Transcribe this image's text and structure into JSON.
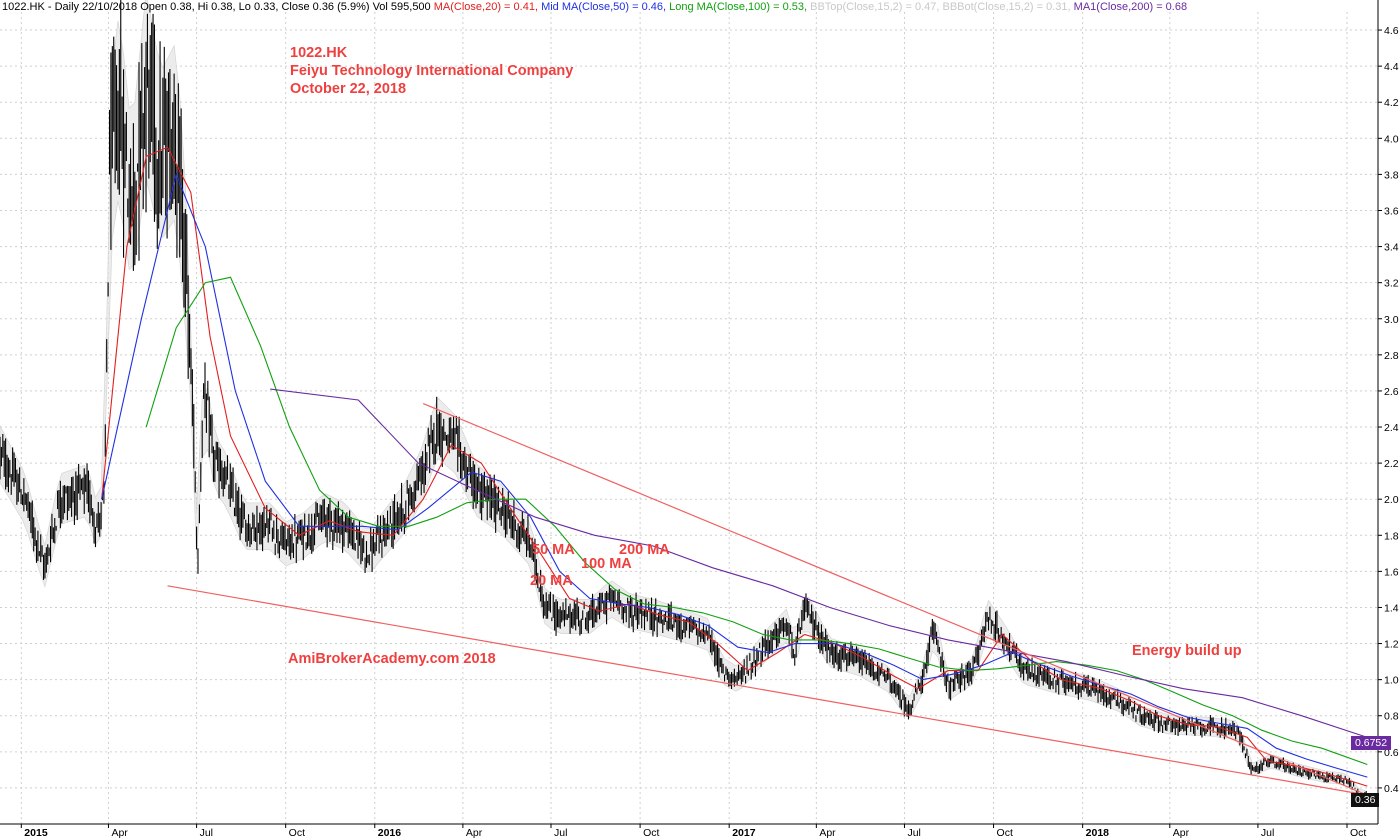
{
  "header": {
    "symbol_info": "1022.HK - Daily 22/10/2018 Open 0.38, Hi 0.38, Lo 0.33, Close 0.36 (5.9%) Vol 595,500",
    "ma20": {
      "text": "MA(Close,20) = 0.41,",
      "color": "#e02020"
    },
    "ma50": {
      "text": "Mid MA(Close,50) = 0.46,",
      "color": "#2030e0"
    },
    "ma100": {
      "text": "Long MA(Close,100) = 0.53,",
      "color": "#10a010"
    },
    "bbtop": {
      "text": "BBTop(Close,15,2) = 0.47,",
      "color": "#c8c8c8"
    },
    "bbbot": {
      "text": "BBBot(Close,15,2) = 0.31,",
      "color": "#c8c8c8"
    },
    "ma200": {
      "text": "MA1(Close,200) = 0.68",
      "color": "#6a2aa0"
    }
  },
  "annotations": {
    "title_lines": [
      "1022.HK",
      "Feiyu Technology International Company",
      "October 22, 2018"
    ],
    "watermark": "AmiBrokerAcademy.com  2018",
    "energy": "Energy build up",
    "ma50_label": "50 MA",
    "ma20_label": "20 MA",
    "ma100_label": "100 MA",
    "ma200_label": "200 MA"
  },
  "badges": {
    "ma200_value": "0.6752",
    "close_value": "0.36"
  },
  "chart_data": {
    "type": "candlestick",
    "title": "1022.HK",
    "ylim": [
      0.2,
      4.7
    ],
    "y_ticks": [
      0.4,
      0.6,
      0.8,
      1.0,
      1.2,
      1.4,
      1.6,
      1.8,
      2.0,
      2.2,
      2.4,
      2.6,
      2.8,
      3.0,
      3.2,
      3.4,
      3.6,
      3.8,
      4.0,
      4.2,
      4.4,
      4.6
    ],
    "y_tick_labels": [
      "0.4",
      "0.6",
      "0.8",
      "1.0",
      "1.2",
      "1.4",
      "1.6",
      "1.8",
      "2.0",
      "2.2",
      "2.4",
      "2.6",
      "2.8",
      "3.0",
      "3.2",
      "3.4",
      "3.6",
      "3.8",
      "4.0",
      "4.2",
      "4.4",
      "4.6"
    ],
    "x_ticks": [
      {
        "date": "2015-01-01",
        "label": "2015",
        "bold": true
      },
      {
        "date": "2015-04-01",
        "label": "Apr"
      },
      {
        "date": "2015-07-01",
        "label": "Jul"
      },
      {
        "date": "2015-10-01",
        "label": "Oct"
      },
      {
        "date": "2016-01-01",
        "label": "2016",
        "bold": true
      },
      {
        "date": "2016-04-01",
        "label": "Apr"
      },
      {
        "date": "2016-07-01",
        "label": "Jul"
      },
      {
        "date": "2016-10-01",
        "label": "Oct"
      },
      {
        "date": "2017-01-01",
        "label": "2017",
        "bold": true
      },
      {
        "date": "2017-04-01",
        "label": "Apr"
      },
      {
        "date": "2017-07-01",
        "label": "Jul"
      },
      {
        "date": "2017-10-01",
        "label": "Oct"
      },
      {
        "date": "2018-01-01",
        "label": "2018",
        "bold": true
      },
      {
        "date": "2018-04-01",
        "label": "Apr"
      },
      {
        "date": "2018-07-01",
        "label": "Jul"
      },
      {
        "date": "2018-10-01",
        "label": "Oct"
      }
    ],
    "grid": true,
    "price_path": [
      [
        "2014-12-10",
        2.25
      ],
      [
        "2015-01-05",
        2.0
      ],
      [
        "2015-01-25",
        1.62
      ],
      [
        "2015-02-10",
        2.0
      ],
      [
        "2015-03-10",
        2.05
      ],
      [
        "2015-03-20",
        1.85
      ],
      [
        "2015-03-28",
        2.0
      ],
      [
        "2015-04-02",
        3.8
      ],
      [
        "2015-04-12",
        4.2
      ],
      [
        "2015-04-25",
        3.6
      ],
      [
        "2015-05-10",
        4.3
      ],
      [
        "2015-05-25",
        3.9
      ],
      [
        "2015-06-10",
        4.05
      ],
      [
        "2015-06-20",
        3.3
      ],
      [
        "2015-06-28",
        2.4
      ],
      [
        "2015-07-02",
        1.6
      ],
      [
        "2015-07-08",
        2.6
      ],
      [
        "2015-07-20",
        2.2
      ],
      [
        "2015-08-01",
        2.1
      ],
      [
        "2015-08-20",
        1.85
      ],
      [
        "2015-09-15",
        1.85
      ],
      [
        "2015-10-01",
        1.75
      ],
      [
        "2015-10-20",
        1.8
      ],
      [
        "2015-11-10",
        1.9
      ],
      [
        "2015-12-01",
        1.85
      ],
      [
        "2015-12-25",
        1.7
      ],
      [
        "2016-02-01",
        1.95
      ],
      [
        "2016-02-20",
        2.15
      ],
      [
        "2016-03-05",
        2.4
      ],
      [
        "2016-03-25",
        2.3
      ],
      [
        "2016-04-15",
        2.05
      ],
      [
        "2016-05-10",
        1.95
      ],
      [
        "2016-06-10",
        1.75
      ],
      [
        "2016-06-25",
        1.4
      ],
      [
        "2016-07-10",
        1.35
      ],
      [
        "2016-08-10",
        1.35
      ],
      [
        "2016-09-01",
        1.45
      ],
      [
        "2016-09-20",
        1.38
      ],
      [
        "2016-10-15",
        1.35
      ],
      [
        "2016-11-15",
        1.3
      ],
      [
        "2016-12-10",
        1.25
      ],
      [
        "2016-12-25",
        1.05
      ],
      [
        "2017-01-10",
        1.0
      ],
      [
        "2017-02-10",
        1.2
      ],
      [
        "2017-03-01",
        1.3
      ],
      [
        "2017-03-10",
        1.15
      ],
      [
        "2017-03-20",
        1.4
      ],
      [
        "2017-04-15",
        1.15
      ],
      [
        "2017-05-15",
        1.1
      ],
      [
        "2017-06-15",
        1.0
      ],
      [
        "2017-07-05",
        0.83
      ],
      [
        "2017-07-20",
        1.0
      ],
      [
        "2017-08-01",
        1.3
      ],
      [
        "2017-08-15",
        0.95
      ],
      [
        "2017-09-10",
        1.05
      ],
      [
        "2017-09-25",
        1.35
      ],
      [
        "2017-10-15",
        1.2
      ],
      [
        "2017-11-01",
        1.05
      ],
      [
        "2017-12-01",
        1.0
      ],
      [
        "2018-01-10",
        0.95
      ],
      [
        "2018-02-10",
        0.88
      ],
      [
        "2018-03-01",
        0.8
      ],
      [
        "2018-04-01",
        0.75
      ],
      [
        "2018-05-10",
        0.74
      ],
      [
        "2018-06-10",
        0.72
      ],
      [
        "2018-06-25",
        0.5
      ],
      [
        "2018-07-15",
        0.55
      ],
      [
        "2018-08-10",
        0.5
      ],
      [
        "2018-09-10",
        0.46
      ],
      [
        "2018-09-30",
        0.45
      ],
      [
        "2018-10-15",
        0.36
      ],
      [
        "2018-10-22",
        0.36
      ]
    ],
    "series": [
      {
        "name": "MA(Close,20)",
        "color": "#e02020",
        "points": [
          [
            "2015-03-25",
            2.0
          ],
          [
            "2015-04-20",
            3.4
          ],
          [
            "2015-05-10",
            3.9
          ],
          [
            "2015-06-01",
            3.95
          ],
          [
            "2015-06-25",
            3.7
          ],
          [
            "2015-07-15",
            2.9
          ],
          [
            "2015-08-05",
            2.35
          ],
          [
            "2015-09-10",
            1.95
          ],
          [
            "2015-10-15",
            1.8
          ],
          [
            "2015-11-15",
            1.88
          ],
          [
            "2015-12-15",
            1.82
          ],
          [
            "2016-01-20",
            1.8
          ],
          [
            "2016-02-20",
            2.0
          ],
          [
            "2016-03-20",
            2.3
          ],
          [
            "2016-04-20",
            2.2
          ],
          [
            "2016-05-20",
            1.95
          ],
          [
            "2016-06-20",
            1.7
          ],
          [
            "2016-07-20",
            1.45
          ],
          [
            "2016-08-20",
            1.38
          ],
          [
            "2016-09-20",
            1.42
          ],
          [
            "2016-10-20",
            1.36
          ],
          [
            "2016-11-20",
            1.32
          ],
          [
            "2016-12-20",
            1.2
          ],
          [
            "2017-01-20",
            1.05
          ],
          [
            "2017-02-20",
            1.15
          ],
          [
            "2017-03-20",
            1.25
          ],
          [
            "2017-04-20",
            1.2
          ],
          [
            "2017-05-20",
            1.12
          ],
          [
            "2017-06-20",
            1.02
          ],
          [
            "2017-07-15",
            0.95
          ],
          [
            "2017-08-15",
            1.05
          ],
          [
            "2017-09-15",
            1.05
          ],
          [
            "2017-10-10",
            1.25
          ],
          [
            "2017-11-10",
            1.1
          ],
          [
            "2017-12-10",
            1.0
          ],
          [
            "2018-01-20",
            0.95
          ],
          [
            "2018-02-20",
            0.88
          ],
          [
            "2018-03-20",
            0.8
          ],
          [
            "2018-04-20",
            0.75
          ],
          [
            "2018-05-20",
            0.74
          ],
          [
            "2018-06-20",
            0.68
          ],
          [
            "2018-07-10",
            0.55
          ],
          [
            "2018-08-10",
            0.52
          ],
          [
            "2018-09-10",
            0.48
          ],
          [
            "2018-10-22",
            0.41
          ]
        ]
      },
      {
        "name": "Mid MA(Close,50)",
        "color": "#2030e0",
        "points": [
          [
            "2015-03-25",
            2.0
          ],
          [
            "2015-05-05",
            3.0
          ],
          [
            "2015-06-10",
            3.8
          ],
          [
            "2015-07-10",
            3.4
          ],
          [
            "2015-08-10",
            2.6
          ],
          [
            "2015-09-10",
            2.1
          ],
          [
            "2015-10-15",
            1.85
          ],
          [
            "2015-11-20",
            1.85
          ],
          [
            "2015-12-20",
            1.85
          ],
          [
            "2016-01-25",
            1.83
          ],
          [
            "2016-02-25",
            1.95
          ],
          [
            "2016-04-10",
            2.15
          ],
          [
            "2016-05-10",
            2.1
          ],
          [
            "2016-06-10",
            1.9
          ],
          [
            "2016-07-10",
            1.6
          ],
          [
            "2016-08-10",
            1.45
          ],
          [
            "2016-09-10",
            1.42
          ],
          [
            "2016-10-10",
            1.4
          ],
          [
            "2016-11-10",
            1.36
          ],
          [
            "2016-12-10",
            1.3
          ],
          [
            "2017-01-10",
            1.18
          ],
          [
            "2017-02-10",
            1.15
          ],
          [
            "2017-03-10",
            1.2
          ],
          [
            "2017-04-20",
            1.2
          ],
          [
            "2017-05-20",
            1.15
          ],
          [
            "2017-06-20",
            1.08
          ],
          [
            "2017-07-20",
            1.0
          ],
          [
            "2017-08-20",
            1.03
          ],
          [
            "2017-09-20",
            1.08
          ],
          [
            "2017-10-20",
            1.15
          ],
          [
            "2017-11-20",
            1.08
          ],
          [
            "2017-12-20",
            1.02
          ],
          [
            "2018-01-20",
            0.97
          ],
          [
            "2018-02-20",
            0.92
          ],
          [
            "2018-03-20",
            0.85
          ],
          [
            "2018-04-20",
            0.79
          ],
          [
            "2018-05-20",
            0.76
          ],
          [
            "2018-06-20",
            0.73
          ],
          [
            "2018-07-20",
            0.62
          ],
          [
            "2018-08-20",
            0.56
          ],
          [
            "2018-09-20",
            0.51
          ],
          [
            "2018-10-22",
            0.46
          ]
        ]
      },
      {
        "name": "Long MA(Close,100)",
        "color": "#10a010",
        "points": [
          [
            "2015-05-10",
            2.4
          ],
          [
            "2015-06-10",
            2.95
          ],
          [
            "2015-07-10",
            3.2
          ],
          [
            "2015-08-05",
            3.23
          ],
          [
            "2015-09-05",
            2.85
          ],
          [
            "2015-10-05",
            2.4
          ],
          [
            "2015-11-05",
            2.05
          ],
          [
            "2015-12-05",
            1.9
          ],
          [
            "2016-01-05",
            1.85
          ],
          [
            "2016-02-05",
            1.85
          ],
          [
            "2016-03-05",
            1.9
          ],
          [
            "2016-04-05",
            1.98
          ],
          [
            "2016-05-05",
            2.0
          ],
          [
            "2016-06-05",
            2.0
          ],
          [
            "2016-07-05",
            1.85
          ],
          [
            "2016-08-05",
            1.65
          ],
          [
            "2016-09-05",
            1.5
          ],
          [
            "2016-10-05",
            1.42
          ],
          [
            "2016-11-05",
            1.4
          ],
          [
            "2016-12-05",
            1.37
          ],
          [
            "2017-01-05",
            1.32
          ],
          [
            "2017-02-05",
            1.25
          ],
          [
            "2017-03-05",
            1.22
          ],
          [
            "2017-04-05",
            1.22
          ],
          [
            "2017-05-05",
            1.2
          ],
          [
            "2017-06-05",
            1.17
          ],
          [
            "2017-07-05",
            1.12
          ],
          [
            "2017-08-05",
            1.07
          ],
          [
            "2017-09-05",
            1.05
          ],
          [
            "2017-10-05",
            1.06
          ],
          [
            "2017-11-05",
            1.08
          ],
          [
            "2017-12-05",
            1.1
          ],
          [
            "2018-01-05",
            1.08
          ],
          [
            "2018-02-05",
            1.05
          ],
          [
            "2018-03-05",
            1.0
          ],
          [
            "2018-04-05",
            0.93
          ],
          [
            "2018-05-05",
            0.86
          ],
          [
            "2018-06-05",
            0.8
          ],
          [
            "2018-07-05",
            0.72
          ],
          [
            "2018-08-05",
            0.66
          ],
          [
            "2018-09-05",
            0.62
          ],
          [
            "2018-10-22",
            0.53
          ]
        ]
      },
      {
        "name": "MA1(Close,200)",
        "color": "#6a2aa0",
        "points": [
          [
            "2015-09-15",
            2.61
          ],
          [
            "2015-12-15",
            2.55
          ],
          [
            "2016-02-15",
            2.2
          ],
          [
            "2016-04-15",
            2.05
          ],
          [
            "2016-06-15",
            1.9
          ],
          [
            "2016-08-15",
            1.8
          ],
          [
            "2016-10-15",
            1.74
          ],
          [
            "2016-12-15",
            1.62
          ],
          [
            "2017-02-15",
            1.52
          ],
          [
            "2017-04-15",
            1.4
          ],
          [
            "2017-06-15",
            1.3
          ],
          [
            "2017-08-15",
            1.22
          ],
          [
            "2017-10-15",
            1.16
          ],
          [
            "2017-12-15",
            1.1
          ],
          [
            "2018-02-15",
            1.02
          ],
          [
            "2018-04-15",
            0.95
          ],
          [
            "2018-06-15",
            0.9
          ],
          [
            "2018-08-15",
            0.8
          ],
          [
            "2018-10-22",
            0.68
          ]
        ]
      }
    ],
    "trendlines": [
      {
        "name": "upper",
        "from": [
          "2016-02-20",
          2.53
        ],
        "to": [
          "2018-10-22",
          0.36
        ]
      },
      {
        "name": "lower",
        "from": [
          "2015-06-01",
          1.52
        ],
        "to": [
          "2018-10-22",
          0.36
        ]
      }
    ]
  }
}
